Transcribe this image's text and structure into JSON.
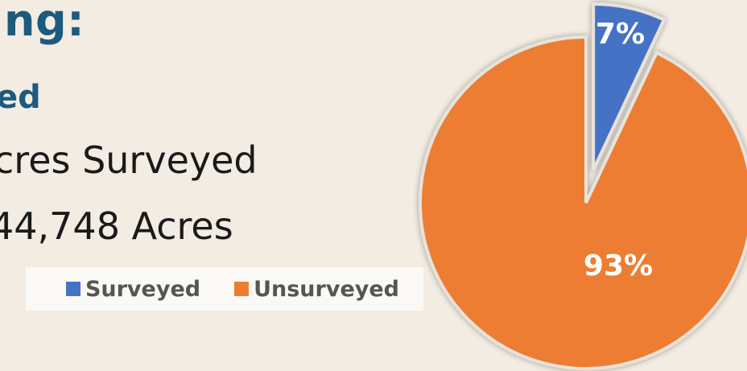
{
  "heading": "ing:",
  "subheading": "ed",
  "line1": "cres Surveyed",
  "line2": "44,748 Acres",
  "colors": {
    "background": "#f2ece2",
    "heading": "#1d5a7e",
    "surveyed": "#4472c4",
    "unsurveyed": "#ed7d31"
  },
  "chart_data": {
    "type": "pie",
    "slices": [
      {
        "label": "Surveyed",
        "value": 7,
        "display": "7%",
        "color": "#4472c4"
      },
      {
        "label": "Unsurveyed",
        "value": 93,
        "display": "93%",
        "color": "#ed7d31"
      }
    ],
    "legend": [
      "Surveyed",
      "Unsurveyed"
    ],
    "legend_position": "left",
    "exploded_slice": "Surveyed"
  }
}
